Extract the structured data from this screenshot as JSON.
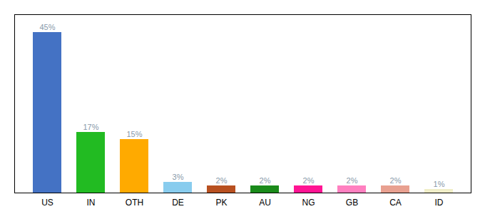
{
  "chart_data": {
    "type": "bar",
    "categories": [
      "US",
      "IN",
      "OTH",
      "DE",
      "PK",
      "AU",
      "NG",
      "GB",
      "CA",
      "ID"
    ],
    "values": [
      45,
      17,
      15,
      3,
      2,
      2,
      2,
      2,
      2,
      1
    ],
    "value_labels": [
      "45%",
      "17%",
      "15%",
      "3%",
      "2%",
      "2%",
      "2%",
      "2%",
      "2%",
      "1%"
    ],
    "colors": [
      "#4472c4",
      "#22bb22",
      "#ffaa00",
      "#88ccee",
      "#b85020",
      "#1a8a1a",
      "#ff1493",
      "#ff80c0",
      "#e8a090",
      "#f0eec8"
    ],
    "ylim": [
      0,
      50
    ],
    "grid": false,
    "data_labels": true,
    "tick_labels": "x"
  }
}
